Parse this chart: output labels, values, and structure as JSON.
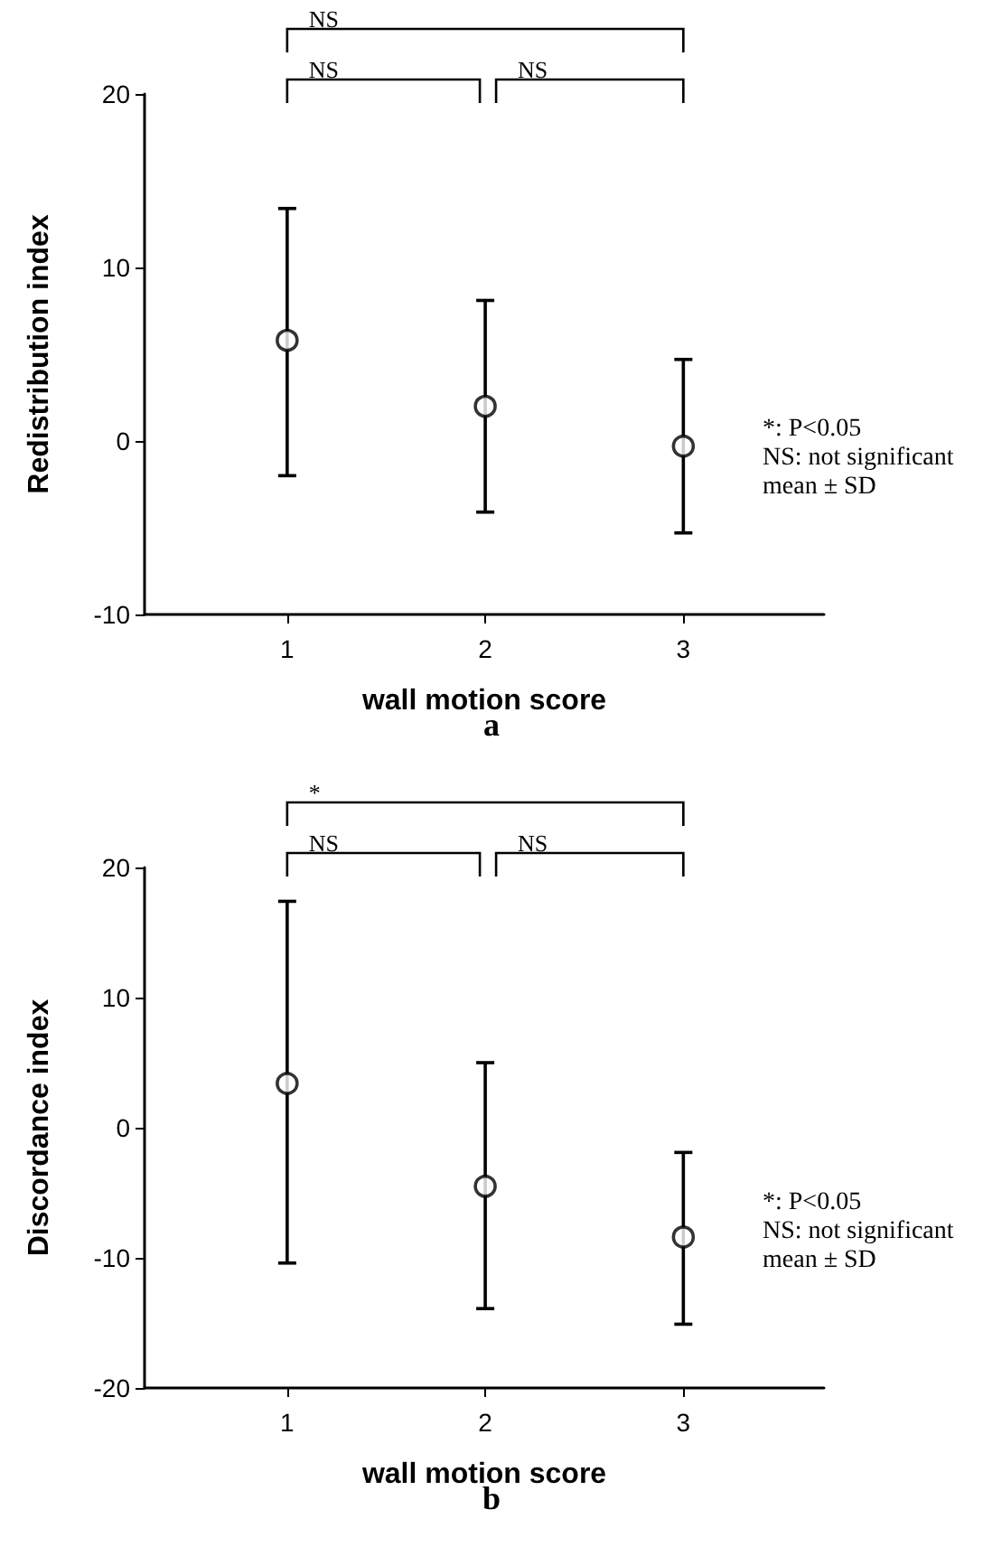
{
  "chart_data": [
    {
      "type": "scatter",
      "title": "a",
      "xlabel": "wall motion score",
      "ylabel": "Redistribution index",
      "x": [
        1,
        2,
        3
      ],
      "xlim": [
        0.28,
        3.71
      ],
      "xticks": [
        1,
        2,
        3
      ],
      "ylim": [
        -10,
        20
      ],
      "yticks": [
        -10,
        0,
        10,
        20
      ],
      "marker": "circle",
      "grid": false,
      "series": [
        {
          "color": "#000000",
          "values": [
            5.8,
            2.0,
            -0.3
          ],
          "errors": [
            [
              -2.0,
              13.4
            ],
            [
              -4.1,
              8.1
            ],
            [
              -5.3,
              4.7
            ]
          ]
        }
      ],
      "annotations": [
        "NS",
        "NS",
        "NS",
        "*: P<0.05",
        "NS: not significant",
        "mean ± SD"
      ]
    },
    {
      "type": "scatter",
      "title": "b",
      "xlabel": "wall motion score",
      "ylabel": "Discordance index",
      "x": [
        1,
        2,
        3
      ],
      "xlim": [
        0.28,
        3.71
      ],
      "xticks": [
        1,
        2,
        3
      ],
      "ylim": [
        -20,
        20
      ],
      "yticks": [
        -20,
        -10,
        0,
        10,
        20
      ],
      "marker": "circle",
      "grid": false,
      "series": [
        {
          "color": "#000000",
          "values": [
            3.4,
            -4.5,
            -8.4
          ],
          "errors": [
            [
              -10.4,
              17.4
            ],
            [
              -13.9,
              5.0
            ],
            [
              -15.1,
              -1.9
            ]
          ]
        }
      ],
      "annotations": [
        "*",
        "NS",
        "NS",
        "*: P<0.05",
        "NS: not significant",
        "mean ± SD"
      ]
    }
  ]
}
